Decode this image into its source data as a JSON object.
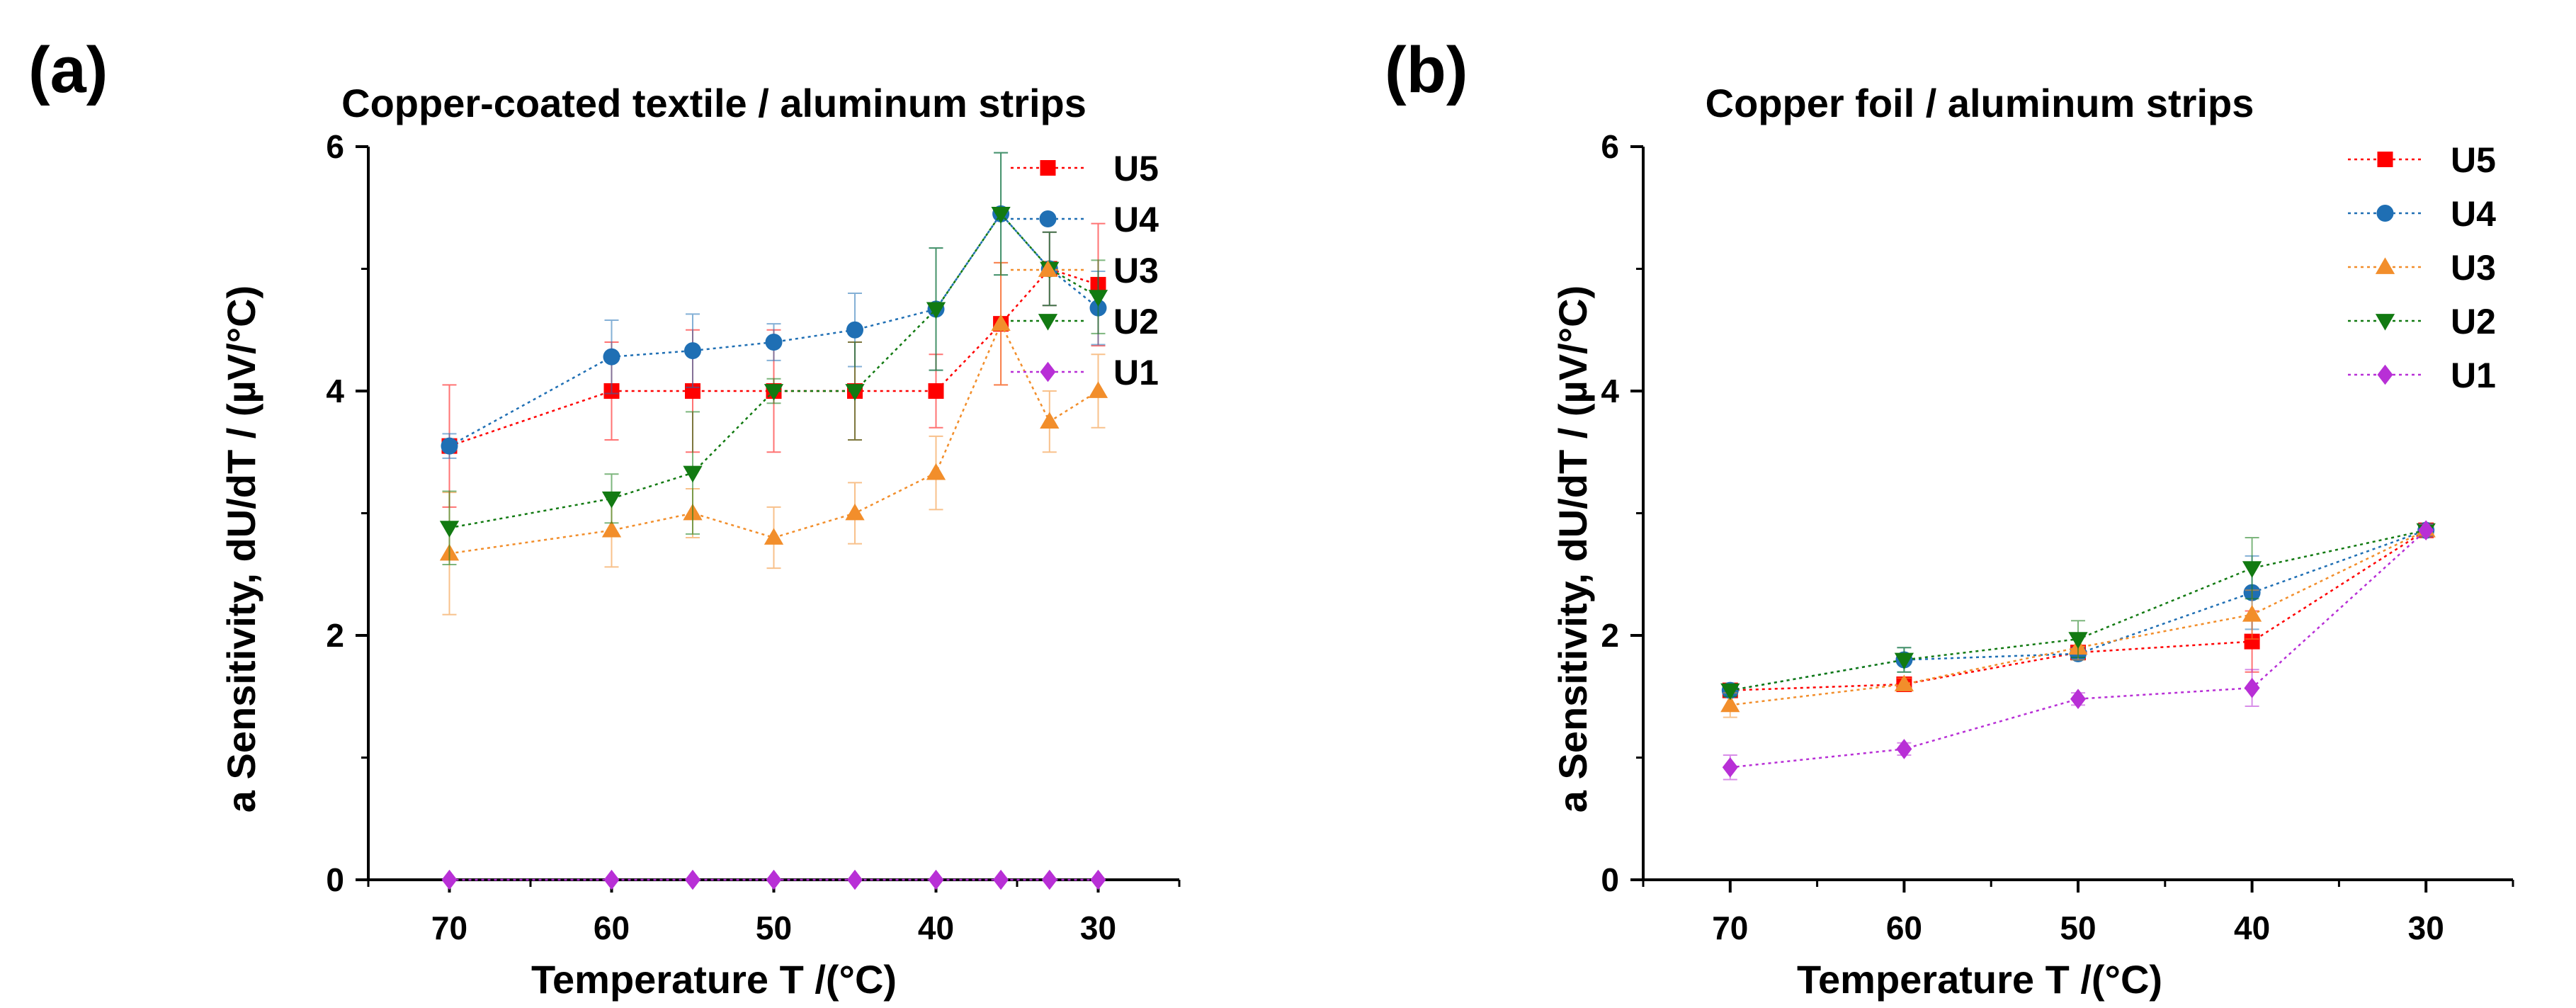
{
  "chart_data": [
    {
      "type": "line",
      "panel_label": "(a)",
      "title": "Copper-coated textile / aluminum strips",
      "xlabel": "Temperature T /(°C)",
      "ylabel": "a Sensitivity, dU/dT / (µV/°C)",
      "xlim": [
        75,
        25
      ],
      "ylim": [
        0,
        6
      ],
      "xticks": [
        70,
        60,
        50,
        40,
        30
      ],
      "yticks": [
        0,
        2,
        4,
        6
      ],
      "legend_position": "top-right",
      "series": [
        {
          "name": "U5",
          "color": "#ff0000",
          "marker": "square",
          "x": [
            70,
            60,
            55,
            50,
            45,
            40,
            36,
            33,
            30
          ],
          "y": [
            3.55,
            4.0,
            4.0,
            4.0,
            4.0,
            4.0,
            4.55,
            5.0,
            4.87
          ],
          "err": [
            0.5,
            0.4,
            0.5,
            0.5,
            0.4,
            0.3,
            0.5,
            0.3,
            0.5
          ]
        },
        {
          "name": "U4",
          "color": "#1f6fb4",
          "marker": "circle",
          "x": [
            70,
            60,
            55,
            50,
            45,
            40,
            36,
            33,
            30
          ],
          "y": [
            3.55,
            4.28,
            4.33,
            4.4,
            4.5,
            4.67,
            5.45,
            5.0,
            4.68
          ],
          "err": [
            0.1,
            0.3,
            0.3,
            0.15,
            0.3,
            0.5,
            0.5,
            0.3,
            0.3
          ]
        },
        {
          "name": "U3",
          "color": "#f28e2b",
          "marker": "triangle-up",
          "x": [
            70,
            60,
            55,
            50,
            45,
            40,
            36,
            33,
            30
          ],
          "y": [
            2.67,
            2.86,
            3.0,
            2.8,
            3.0,
            3.33,
            4.55,
            3.75,
            4.0
          ],
          "err": [
            0.5,
            0.3,
            0.2,
            0.25,
            0.25,
            0.3,
            0.5,
            0.25,
            0.3
          ]
        },
        {
          "name": "U2",
          "color": "#127a12",
          "marker": "triangle-down",
          "x": [
            70,
            60,
            55,
            50,
            45,
            40,
            36,
            33,
            30
          ],
          "y": [
            2.88,
            3.12,
            3.33,
            4.0,
            4.0,
            4.67,
            5.45,
            5.0,
            4.77
          ],
          "err": [
            0.3,
            0.2,
            0.5,
            0.1,
            0.4,
            0.5,
            0.5,
            0.3,
            0.3
          ]
        },
        {
          "name": "U1",
          "color": "#b82fd6",
          "marker": "diamond",
          "x": [
            70,
            60,
            55,
            50,
            45,
            40,
            36,
            33,
            30
          ],
          "y": [
            0,
            0,
            0,
            0,
            0,
            0,
            0,
            0,
            0
          ],
          "err": [
            0,
            0,
            0,
            0,
            0,
            0,
            0,
            0,
            0
          ]
        }
      ]
    },
    {
      "type": "line",
      "panel_label": "(b)",
      "title": "Copper foil / aluminum strips",
      "xlabel": "Temperature T /(°C)",
      "ylabel": "a Sensitivity, dU/dT / (µV/°C)",
      "xlim": [
        75,
        25
      ],
      "ylim": [
        0,
        6
      ],
      "xticks": [
        70,
        60,
        50,
        40,
        30
      ],
      "yticks": [
        0,
        2,
        4,
        6
      ],
      "legend_position": "top-right",
      "series": [
        {
          "name": "U5",
          "color": "#ff0000",
          "marker": "square",
          "x": [
            70,
            60,
            50,
            40,
            30
          ],
          "y": [
            1.55,
            1.6,
            1.86,
            1.95,
            2.86
          ],
          "err": [
            0.05,
            0.05,
            0.05,
            0.25,
            0.05
          ]
        },
        {
          "name": "U4",
          "color": "#1f6fb4",
          "marker": "circle",
          "x": [
            70,
            60,
            50,
            40,
            30
          ],
          "y": [
            1.55,
            1.8,
            1.85,
            2.35,
            2.86
          ],
          "err": [
            0.05,
            0.1,
            0.05,
            0.3,
            0.05
          ]
        },
        {
          "name": "U3",
          "color": "#f28e2b",
          "marker": "triangle-up",
          "x": [
            70,
            60,
            50,
            40,
            30
          ],
          "y": [
            1.43,
            1.6,
            1.9,
            2.17,
            2.86
          ],
          "err": [
            0.1,
            0.05,
            0.1,
            0.2,
            0.05
          ]
        },
        {
          "name": "U2",
          "color": "#127a12",
          "marker": "triangle-down",
          "x": [
            70,
            60,
            50,
            40,
            30
          ],
          "y": [
            1.55,
            1.8,
            1.97,
            2.55,
            2.86
          ],
          "err": [
            0.05,
            0.1,
            0.15,
            0.25,
            0.05
          ]
        },
        {
          "name": "U1",
          "color": "#b82fd6",
          "marker": "diamond",
          "x": [
            70,
            60,
            50,
            40,
            30
          ],
          "y": [
            0.92,
            1.07,
            1.48,
            1.57,
            2.86
          ],
          "err": [
            0.1,
            0.05,
            0.05,
            0.15,
            0.05
          ]
        }
      ]
    }
  ]
}
